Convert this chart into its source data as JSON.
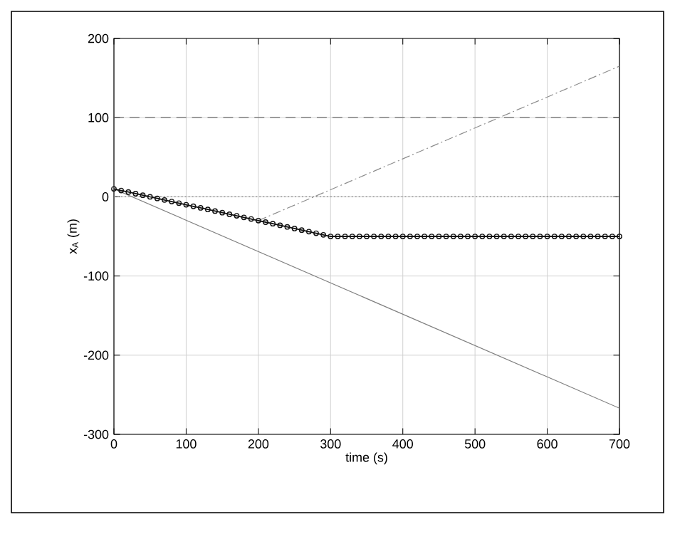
{
  "chart_data": {
    "type": "line",
    "xlabel": "time (s)",
    "ylabel": "x$_{A}$  (m)",
    "xlim": [
      0,
      700
    ],
    "ylim": [
      -300,
      200
    ],
    "xticks": [
      0,
      100,
      200,
      300,
      400,
      500,
      600,
      700
    ],
    "yticks": [
      -300,
      -200,
      -100,
      0,
      100,
      200
    ],
    "grid": true,
    "legend": false,
    "series": [
      {
        "color": "#7f7f7f",
        "line_style": "solid",
        "marker": "none",
        "x": [
          0,
          700
        ],
        "values": [
          10,
          -267
        ]
      },
      {
        "color": "#8c8c8c",
        "line_style": "dashdot",
        "marker": "none",
        "x": [
          200,
          700
        ],
        "values": [
          -30,
          165
        ]
      },
      {
        "color": "#111111",
        "line_style": "solid",
        "marker": "circle",
        "x": [
          0,
          10,
          20,
          30,
          40,
          50,
          60,
          70,
          80,
          90,
          100,
          110,
          120,
          130,
          140,
          150,
          160,
          170,
          180,
          190,
          200,
          210,
          220,
          230,
          240,
          250,
          260,
          270,
          280,
          290,
          300,
          310,
          320,
          330,
          340,
          350,
          360,
          370,
          380,
          390,
          400,
          410,
          420,
          430,
          440,
          450,
          460,
          470,
          480,
          490,
          500,
          510,
          520,
          530,
          540,
          550,
          560,
          570,
          580,
          590,
          600,
          610,
          620,
          630,
          640,
          650,
          660,
          670,
          680,
          690,
          700
        ],
        "values": [
          10,
          8,
          6,
          4,
          2,
          0,
          -2,
          -4,
          -6,
          -8,
          -10,
          -12,
          -14,
          -16,
          -18,
          -20,
          -22,
          -24,
          -26,
          -28,
          -30,
          -32,
          -34,
          -36,
          -38,
          -40,
          -42,
          -44,
          -46,
          -48,
          -50,
          -50,
          -50,
          -50,
          -50,
          -50,
          -50,
          -50,
          -50,
          -50,
          -50,
          -50,
          -50,
          -50,
          -50,
          -50,
          -50,
          -50,
          -50,
          -50,
          -50,
          -50,
          -50,
          -50,
          -50,
          -50,
          -50,
          -50,
          -50,
          -50,
          -50,
          -50,
          -50,
          -50,
          -50,
          -50,
          -50,
          -50,
          -50,
          -50,
          -50
        ]
      }
    ],
    "ref_lines": [
      {
        "axis": "y",
        "value": 100,
        "color": "#6e6e6e",
        "line_style": "dashed"
      },
      {
        "axis": "y",
        "value": 0,
        "color": "#7f7f7f",
        "line_style": "dotted"
      }
    ]
  }
}
